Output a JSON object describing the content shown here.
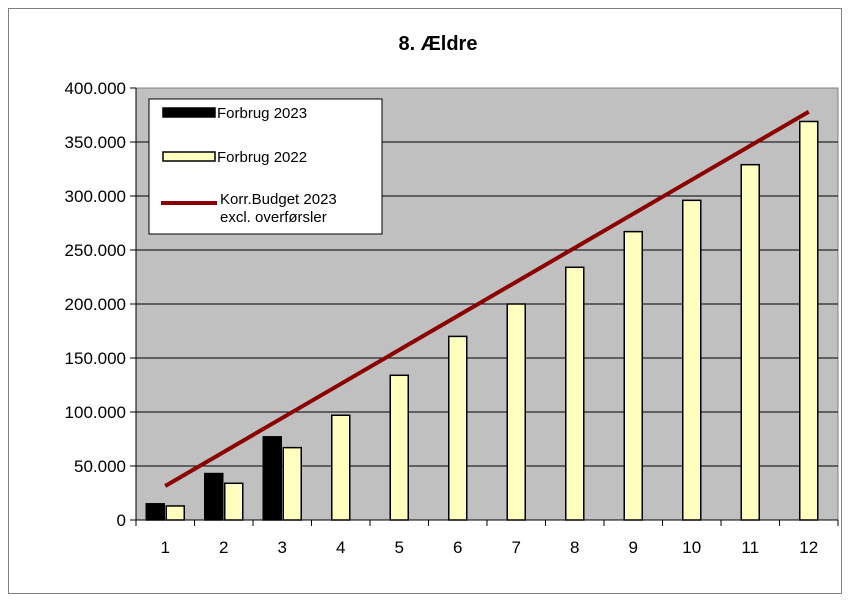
{
  "chart_data": {
    "type": "bar",
    "title": "8. Ældre",
    "xlabel": "",
    "ylabel": "",
    "categories": [
      "1",
      "2",
      "3",
      "4",
      "5",
      "6",
      "7",
      "8",
      "9",
      "10",
      "11",
      "12"
    ],
    "ylim": [
      0,
      400000
    ],
    "y_ticks": [
      0,
      50000,
      100000,
      150000,
      200000,
      250000,
      300000,
      350000,
      400000
    ],
    "y_tick_labels": [
      "0",
      "50.000",
      "100.000",
      "150.000",
      "200.000",
      "250.000",
      "300.000",
      "350.000",
      "400.000"
    ],
    "grid": true,
    "legend_position": "top-left",
    "plot_background": "#c0c0c0",
    "series": [
      {
        "name": "Forbrug 2023",
        "type": "bar",
        "color": "#000000",
        "values": [
          15000,
          43000,
          77000,
          null,
          null,
          null,
          null,
          null,
          null,
          null,
          null,
          null
        ]
      },
      {
        "name": "Forbrug 2022",
        "type": "bar",
        "color": "#ffffc0",
        "values": [
          13000,
          34000,
          67000,
          97000,
          134000,
          170000,
          200000,
          234000,
          267000,
          296000,
          329000,
          369000
        ]
      },
      {
        "name": "Korr.Budget 2023 excl. overførsler",
        "label_lines": [
          "Korr.Budget 2023",
          "excl. overførsler"
        ],
        "type": "line",
        "color": "#8b0000",
        "values": [
          31500,
          63000,
          94500,
          126000,
          157500,
          189000,
          220500,
          252000,
          283500,
          315000,
          346500,
          378000
        ]
      }
    ]
  }
}
